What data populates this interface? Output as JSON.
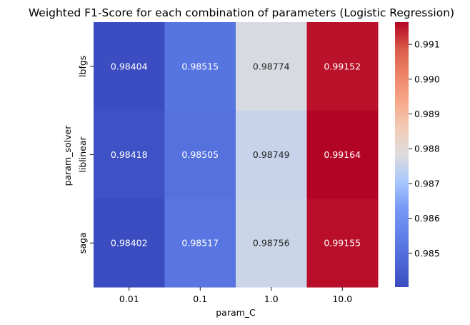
{
  "chart_data": {
    "type": "heatmap",
    "title": "Weighted F1-Score for each combination of parameters (Logistic Regression)",
    "xlabel": "param_C",
    "ylabel": "param_solver",
    "x_categories": [
      "0.01",
      "0.1",
      "1.0",
      "10.0"
    ],
    "y_categories": [
      "lbfgs",
      "liblinear",
      "saga"
    ],
    "values": [
      [
        0.98404,
        0.98515,
        0.98774,
        0.99152
      ],
      [
        0.98418,
        0.98505,
        0.98749,
        0.99164
      ],
      [
        0.98402,
        0.98517,
        0.98756,
        0.99155
      ]
    ],
    "value_labels": [
      [
        "0.98404",
        "0.98515",
        "0.98774",
        "0.99152"
      ],
      [
        "0.98418",
        "0.98505",
        "0.98749",
        "0.99164"
      ],
      [
        "0.98402",
        "0.98517",
        "0.98756",
        "0.99155"
      ]
    ],
    "colormap": "coolwarm",
    "colorbar": {
      "range": [
        0.98402,
        0.99164
      ],
      "ticks": [
        0.985,
        0.986,
        0.987,
        0.988,
        0.989,
        0.99,
        0.991
      ],
      "tick_labels": [
        "0.985",
        "0.986",
        "0.987",
        "0.988",
        "0.989",
        "0.990",
        "0.991"
      ],
      "placement": "right"
    },
    "grid": false
  }
}
